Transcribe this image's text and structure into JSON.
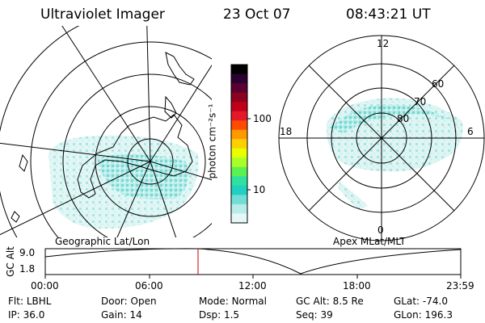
{
  "header": {
    "instrument": "Ultraviolet Imager",
    "date": "23 Oct 07",
    "time": "08:43:21 UT"
  },
  "left_panel": {
    "caption": "Geographic Lat/Lon"
  },
  "right_panel": {
    "caption": "Apex MLat/MLT",
    "mlt_labels": [
      "12",
      "18",
      "6",
      "0"
    ],
    "lat_labels": [
      "60",
      "70",
      "80"
    ]
  },
  "colorbar": {
    "unit_label": "photon cm⁻²s⁻¹",
    "tick_labels": [
      "100",
      "10"
    ],
    "colors": [
      "#000000",
      "#2b0033",
      "#5a0030",
      "#8c0020",
      "#c0001a",
      "#e4182a",
      "#ff4a00",
      "#ff9900",
      "#ffd000",
      "#e8ff00",
      "#a8ff28",
      "#5cf050",
      "#2fe0a0",
      "#20d0c0",
      "#72ddd6",
      "#b8ecea",
      "#e4f8f8"
    ]
  },
  "altitude_strip": {
    "ylabel": "GC Alt",
    "y_ticks": [
      "9.0",
      "1.8"
    ],
    "x_ticks": [
      "00:00",
      "06:00",
      "12:00",
      "18:00",
      "23:59"
    ],
    "marker_color": "#cc0000"
  },
  "info": {
    "row1": [
      {
        "label": "Flt:",
        "value": "LBHL"
      },
      {
        "label": "Door:",
        "value": "Open"
      },
      {
        "label": "Mode:",
        "value": "Normal"
      },
      {
        "label": "GC Alt:",
        "value": "8.5 Re"
      },
      {
        "label": "GLat:",
        "value": "-74.0"
      }
    ],
    "row2": [
      {
        "label": "IP:",
        "value": "36.0"
      },
      {
        "label": "Gain:",
        "value": "14"
      },
      {
        "label": "Dsp:",
        "value": "1.5"
      },
      {
        "label": "Seq:",
        "value": "39"
      },
      {
        "label": "GLon:",
        "value": "196.3"
      }
    ]
  }
}
